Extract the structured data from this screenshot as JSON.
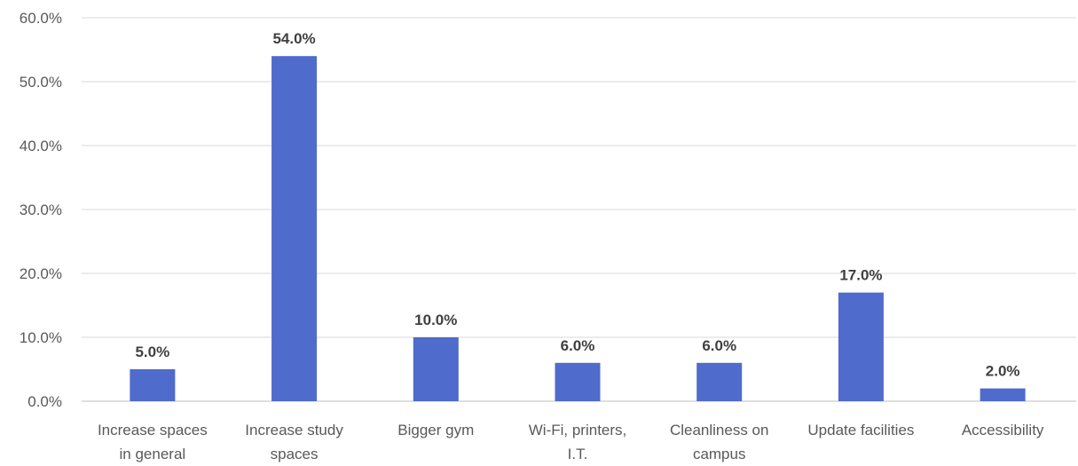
{
  "chart_data": {
    "type": "bar",
    "title": "",
    "xlabel": "",
    "ylabel": "",
    "categories": [
      [
        "Increase spaces",
        "in general"
      ],
      [
        "Increase study",
        "spaces"
      ],
      [
        "Bigger gym"
      ],
      [
        "Wi-Fi, printers,",
        "I.T."
      ],
      [
        "Cleanliness on",
        "campus"
      ],
      [
        "Update facilities"
      ],
      [
        "Accessibility"
      ]
    ],
    "values": [
      5.0,
      54.0,
      10.0,
      6.0,
      6.0,
      17.0,
      2.0
    ],
    "data_labels": [
      "5.0%",
      "54.0%",
      "10.0%",
      "6.0%",
      "6.0%",
      "17.0%",
      "2.0%"
    ],
    "ylim": [
      0,
      60
    ],
    "yticks": [
      "0.0%",
      "10.0%",
      "20.0%",
      "30.0%",
      "40.0%",
      "50.0%",
      "60.0%"
    ],
    "grid": true,
    "legend": "none",
    "bar_color": "#4f6bcb"
  }
}
